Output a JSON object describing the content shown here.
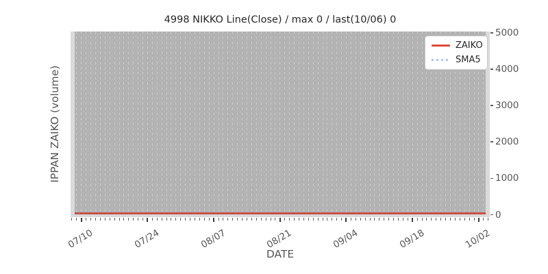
{
  "chart_data": {
    "type": "line",
    "title": "4998 NIKKO Line(Close) / max 0 / last(10/06) 0",
    "xlabel": "DATE",
    "ylabel": "IPPAN ZAIKO (volume)",
    "x_tick_labels": [
      "07/10",
      "07/24",
      "08/07",
      "08/21",
      "09/04",
      "09/18",
      "10/02"
    ],
    "x_minor_ticks": "daily",
    "x_major_tick_interval_days": 14,
    "y_tick_labels": [
      "0",
      "1000",
      "2000",
      "3000",
      "4000",
      "5000"
    ],
    "ylim": [
      0,
      5000
    ],
    "y_axis_side": "right",
    "grid": "vertical dashed daily gridlines over gray data region, no horizontal gridlines",
    "legend_position": "upper-right",
    "series": [
      {
        "name": "ZAIKO",
        "style": "solid",
        "color": "#e04a35",
        "constant_value": 0,
        "max": 0,
        "last_date": "10/06",
        "last_value": 0
      },
      {
        "name": "SMA5",
        "style": "dotted",
        "color": "#a8c9e8",
        "constant_value": 0
      }
    ]
  },
  "colors": {
    "figure_background": "#ffffff",
    "plot_background": "#dadada",
    "data_region_background": "#b3b3b3",
    "gridline": "#c9c9c9",
    "tick_text": "#555555",
    "title_text": "#262626",
    "legend_border": "#c9c9c9"
  }
}
